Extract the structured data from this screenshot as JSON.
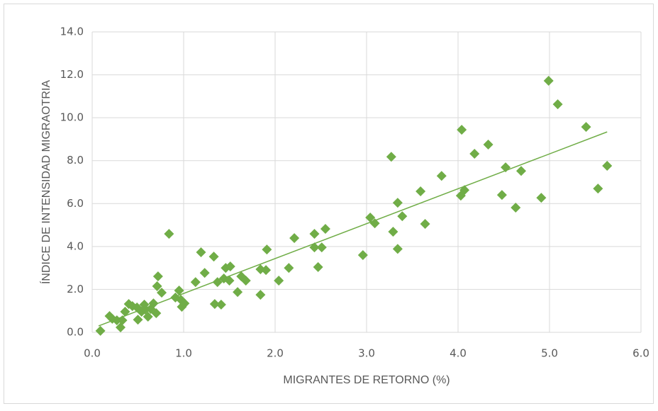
{
  "chart_data": {
    "type": "scatter",
    "xlabel": "MIGRANTES DE RETORNO (%)",
    "ylabel": "ÍNDICE DE INTENSIDAD MIGRAOTRIA",
    "color": "#70ad47",
    "grid": true,
    "xlim": [
      0,
      6
    ],
    "ylim": [
      0,
      14
    ],
    "xticks": [
      {
        "value": 0,
        "label": "0.0"
      },
      {
        "value": 1,
        "label": "1.0"
      },
      {
        "value": 2,
        "label": "2.0"
      },
      {
        "value": 3,
        "label": "3.0"
      },
      {
        "value": 4,
        "label": "4.0"
      },
      {
        "value": 5,
        "label": "5.0"
      },
      {
        "value": 6,
        "label": "6.0"
      }
    ],
    "yticks": [
      {
        "value": 0,
        "label": "0.0"
      },
      {
        "value": 2,
        "label": "2.0"
      },
      {
        "value": 4,
        "label": "4.0"
      },
      {
        "value": 6,
        "label": "6.0"
      },
      {
        "value": 8,
        "label": "8.0"
      },
      {
        "value": 10,
        "label": "10.0"
      },
      {
        "value": 12,
        "label": "12.0"
      },
      {
        "value": 14,
        "label": "14.0"
      }
    ],
    "x": [
      0.09,
      0.19,
      0.22,
      0.27,
      0.31,
      0.33,
      0.36,
      0.4,
      0.44,
      0.49,
      0.5,
      0.54,
      0.57,
      0.58,
      0.61,
      0.64,
      0.67,
      0.7,
      0.71,
      0.72,
      0.76,
      0.84,
      0.91,
      0.95,
      0.97,
      0.98,
      1.01,
      1.13,
      1.19,
      1.23,
      1.33,
      1.34,
      1.37,
      1.41,
      1.44,
      1.46,
      1.5,
      1.51,
      1.59,
      1.63,
      1.68,
      1.84,
      1.84,
      1.91,
      1.9,
      2.04,
      2.15,
      2.21,
      2.43,
      2.43,
      2.47,
      2.51,
      2.55,
      2.96,
      3.04,
      3.09,
      3.27,
      3.29,
      3.34,
      3.34,
      3.39,
      3.59,
      3.64,
      3.82,
      4.04,
      4.03,
      4.07,
      4.18,
      4.33,
      4.48,
      4.52,
      4.63,
      4.69,
      4.91,
      4.99,
      5.09,
      5.4,
      5.53,
      5.63
    ],
    "values": [
      0.07,
      0.76,
      0.63,
      0.56,
      0.23,
      0.56,
      0.96,
      1.32,
      1.22,
      1.16,
      0.59,
      0.96,
      1.29,
      1.06,
      0.73,
      1.09,
      1.35,
      0.89,
      2.15,
      2.61,
      1.85,
      4.59,
      1.62,
      1.95,
      1.52,
      1.19,
      1.35,
      2.34,
      3.73,
      2.77,
      3.53,
      1.32,
      2.34,
      1.29,
      2.51,
      3.0,
      2.41,
      3.07,
      1.88,
      2.61,
      2.41,
      1.75,
      2.94,
      3.86,
      2.9,
      2.41,
      3.0,
      4.39,
      4.59,
      3.96,
      3.04,
      3.96,
      4.82,
      3.6,
      5.35,
      5.08,
      8.18,
      4.69,
      6.04,
      3.89,
      5.41,
      6.57,
      5.05,
      7.29,
      9.44,
      6.37,
      6.63,
      8.32,
      8.75,
      6.4,
      7.69,
      5.81,
      7.52,
      6.27,
      11.72,
      10.63,
      9.57,
      6.7,
      7.76
    ],
    "trendline": {
      "x": [
        0.07,
        5.63
      ],
      "y": [
        0.3,
        9.34
      ]
    }
  }
}
